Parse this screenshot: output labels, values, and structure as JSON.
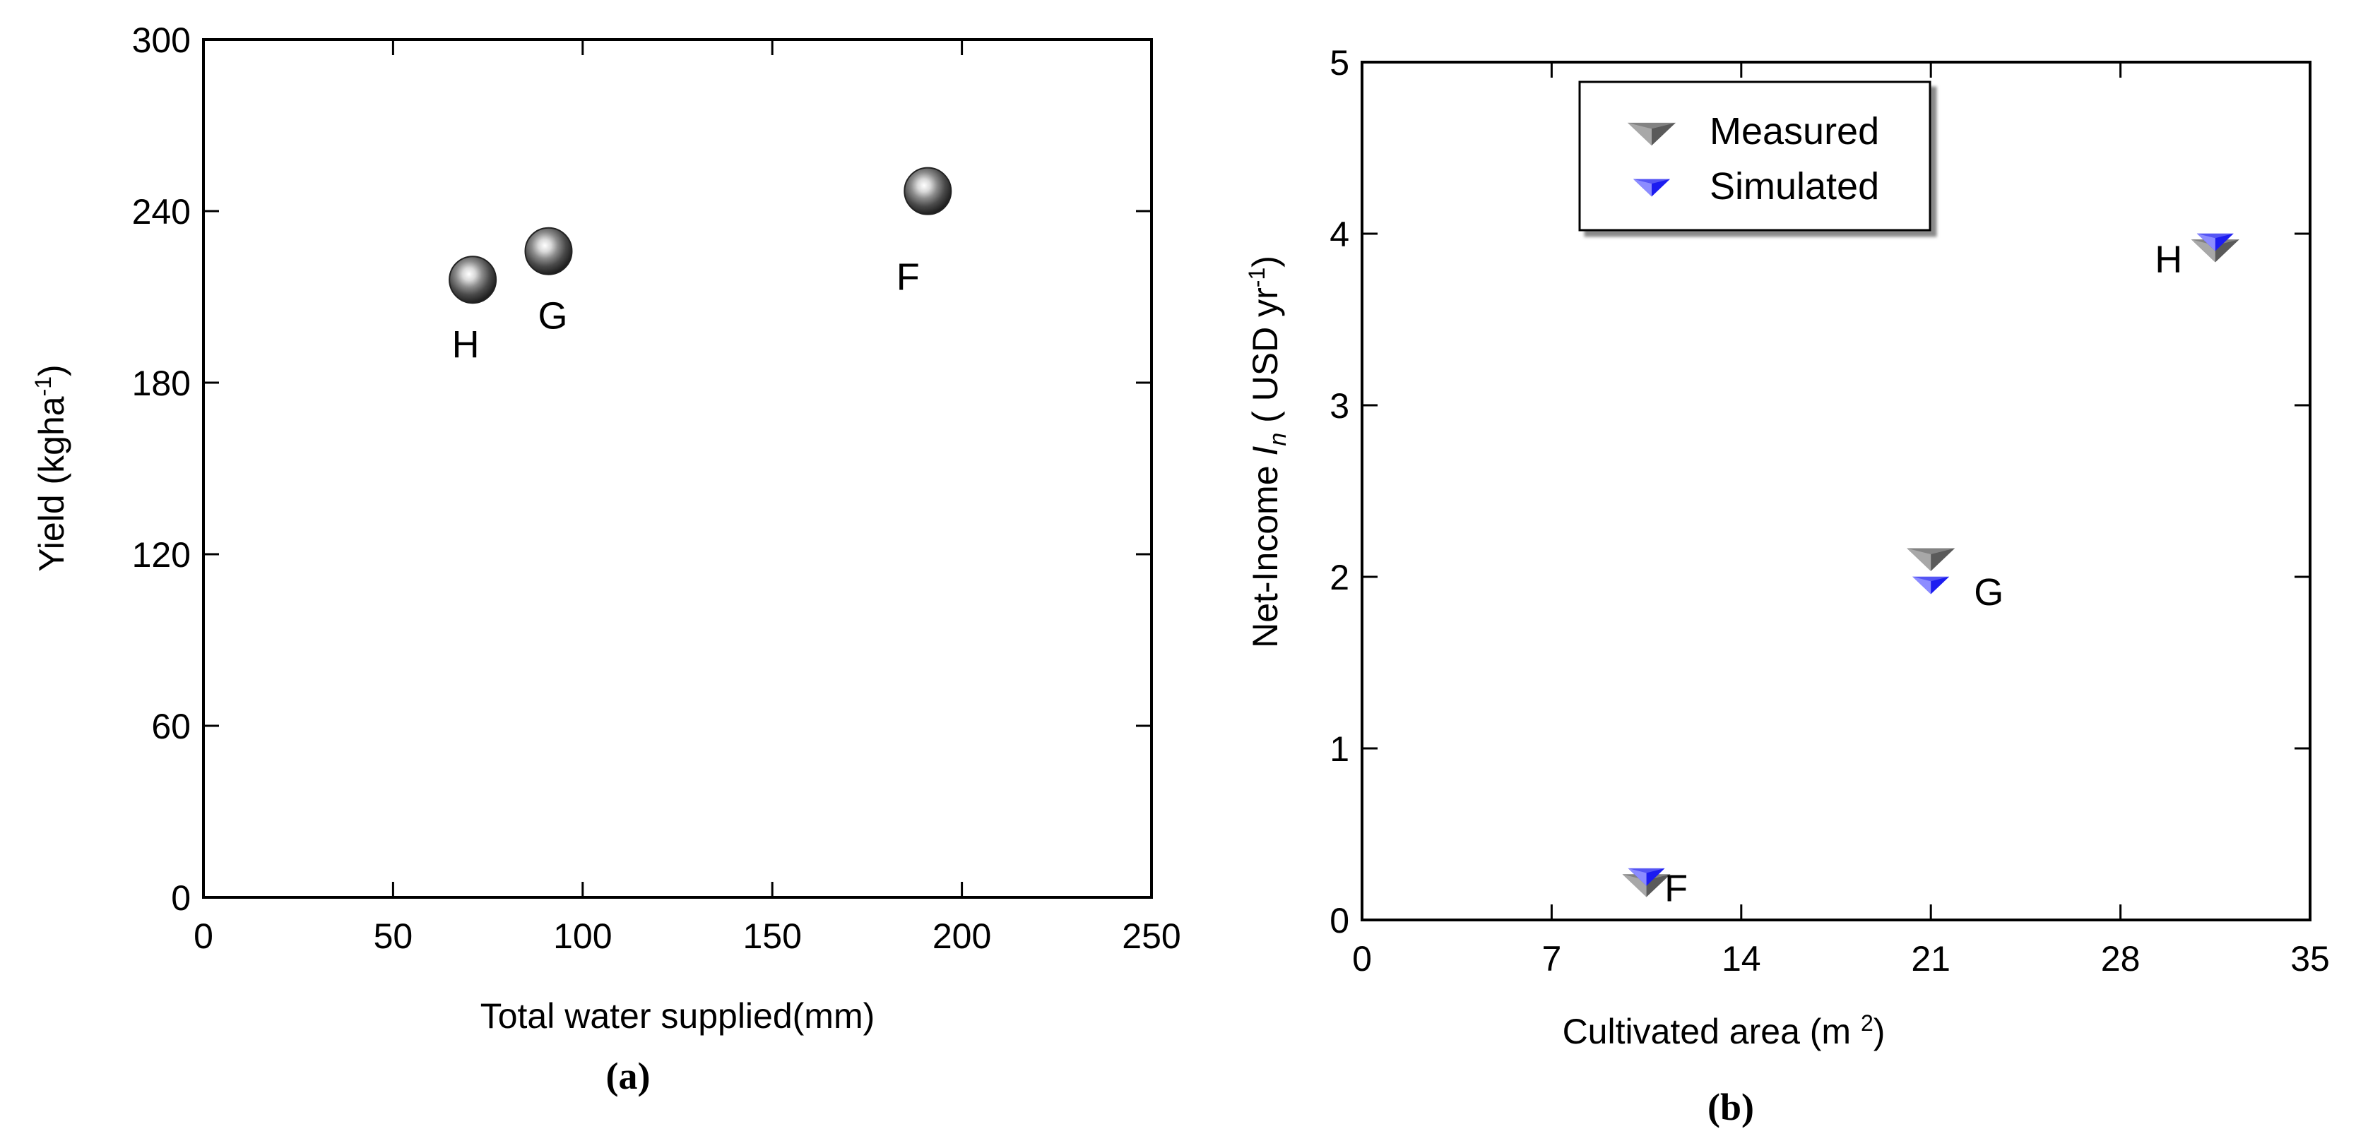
{
  "chart_data": [
    {
      "type": "scatter",
      "panel_label": "(a)",
      "xlabel": "Total water supplied(mm)",
      "ylabel_main": "Yield (kgha",
      "ylabel_sup": "-1",
      "ylabel_end": ")",
      "xlim": [
        0,
        250
      ],
      "ylim": [
        0,
        300
      ],
      "xticks": [
        0,
        50,
        100,
        150,
        200,
        250
      ],
      "yticks": [
        0,
        60,
        120,
        180,
        240,
        300
      ],
      "grid": false,
      "series": [
        {
          "name": "Yield",
          "points": [
            {
              "x": 71,
              "y": 216,
              "label": "H"
            },
            {
              "x": 91,
              "y": 226,
              "label": "G"
            },
            {
              "x": 191,
              "y": 247,
              "label": "F"
            }
          ]
        }
      ]
    },
    {
      "type": "scatter",
      "panel_label": "(b)",
      "xlabel_main": "Cultivated area (m ",
      "xlabel_sup": "2",
      "xlabel_end": ")",
      "ylabel_main": "Net-Income ",
      "ylabel_italic": "I",
      "ylabel_sub": "n",
      "ylabel_mid": " ( USD yr",
      "ylabel_sup": "-1",
      "ylabel_end": ")",
      "xlim": [
        0,
        35
      ],
      "ylim": [
        0,
        5
      ],
      "xticks": [
        0,
        7,
        14,
        21,
        28,
        35
      ],
      "yticks": [
        0,
        1,
        2,
        3,
        4,
        5
      ],
      "grid": false,
      "legend_position": "top-left",
      "point_labels": [
        {
          "label": "F",
          "x": 10.5,
          "y": 0.2
        },
        {
          "label": "G",
          "x": 21,
          "y": 2.0
        },
        {
          "label": "H",
          "x": 31.5,
          "y": 3.9
        }
      ],
      "series": [
        {
          "name": "Measured",
          "color": "#7a7a7a",
          "points": [
            {
              "x": 10.5,
              "y": 0.2
            },
            {
              "x": 21,
              "y": 2.1
            },
            {
              "x": 31.5,
              "y": 3.9
            }
          ]
        },
        {
          "name": "Simulated",
          "color": "#3a3aff",
          "points": [
            {
              "x": 10.5,
              "y": 0.25
            },
            {
              "x": 21,
              "y": 1.95
            },
            {
              "x": 31.5,
              "y": 3.95
            }
          ]
        }
      ]
    }
  ]
}
